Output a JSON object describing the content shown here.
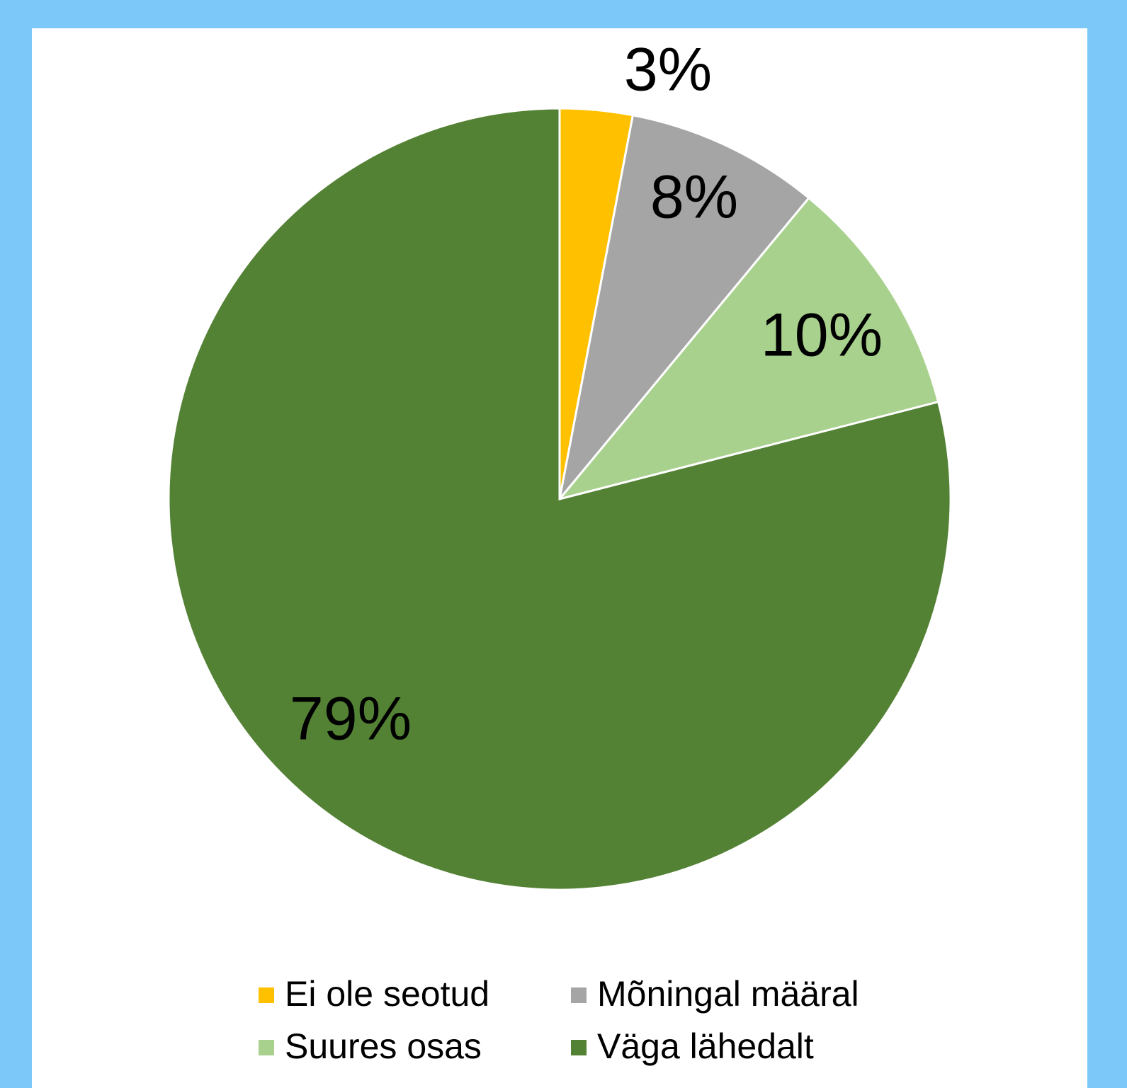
{
  "chart_data": {
    "type": "pie",
    "categories": [
      "Ei ole seotud",
      "Mõningal määral",
      "Suures osas",
      "Väga lähedalt"
    ],
    "values": [
      3,
      8,
      10,
      79
    ],
    "value_labels": [
      "3%",
      "8%",
      "10%",
      "79%"
    ],
    "colors": [
      "#FFC000",
      "#A5A5A5",
      "#A9D18E",
      "#548235"
    ],
    "legend": "bottom"
  }
}
